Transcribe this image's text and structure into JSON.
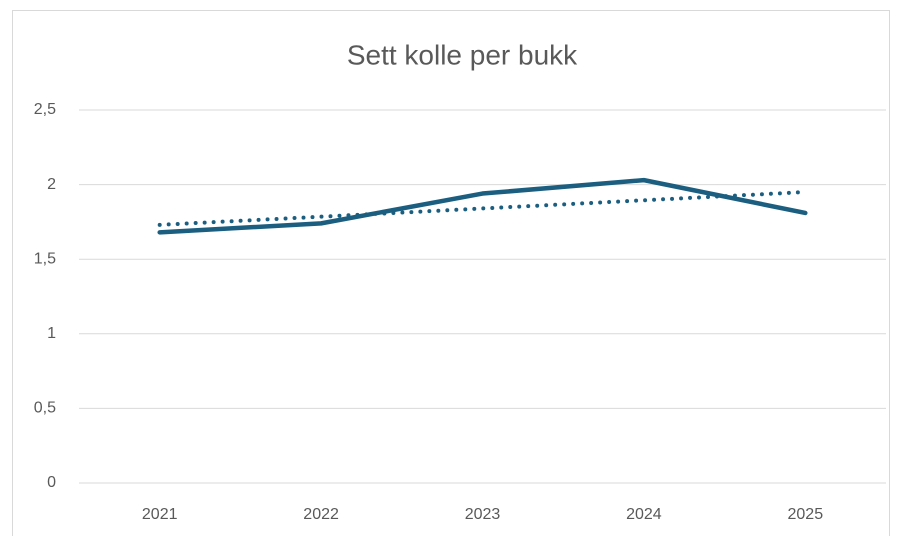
{
  "chart_data": {
    "type": "line",
    "title": "Sett kolle per bukk",
    "categories": [
      "2021",
      "2022",
      "2023",
      "2024",
      "2025"
    ],
    "series": [
      {
        "color": "#1b5e80",
        "style": "solid",
        "values": [
          1.68,
          1.74,
          1.94,
          2.03,
          1.81
        ]
      },
      {
        "color": "#1b5e80",
        "style": "dotted",
        "values": [
          1.73,
          1.785,
          1.84,
          1.895,
          1.95
        ]
      }
    ],
    "ylim": [
      0,
      2.5
    ],
    "yticks": [
      0,
      {
        "value": 0.5,
        "label": "0,5"
      },
      1,
      {
        "value": 1.5,
        "label": "1,5"
      },
      2,
      {
        "value": 2.5,
        "label": "2,5"
      }
    ],
    "grid": true
  }
}
